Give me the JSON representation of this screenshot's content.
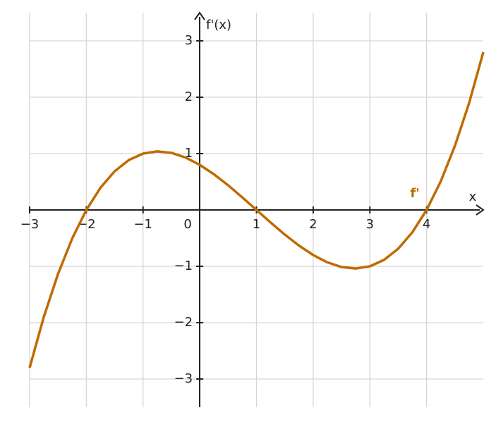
{
  "chart_data": {
    "type": "line",
    "xlabel": "x",
    "ylabel": "f'(x)",
    "x": [
      -3,
      -2.75,
      -2.5,
      -2.25,
      -2,
      -1.75,
      -1.5,
      -1.25,
      -1,
      -0.75,
      -0.5,
      -0.25,
      0,
      0.25,
      0.5,
      0.75,
      1,
      1.25,
      1.5,
      1.75,
      2,
      2.25,
      2.5,
      2.75,
      3,
      3.25,
      3.5,
      3.75,
      4,
      4.25,
      4.5,
      4.75,
      5
    ],
    "series": [
      {
        "name": "f'",
        "color": "#bf6b00",
        "values": [
          -2.8,
          -1.898,
          -1.138,
          -0.508,
          0,
          0.395,
          0.688,
          0.886,
          1.0,
          1.039,
          1.013,
          0.93,
          0.8,
          0.633,
          0.438,
          0.223,
          0,
          -0.223,
          -0.438,
          -0.633,
          -0.8,
          -0.93,
          -1.013,
          -1.039,
          -1.0,
          -0.886,
          -0.688,
          -0.395,
          0,
          0.508,
          1.138,
          1.898,
          2.8
        ]
      }
    ],
    "xlim": [
      -3,
      5
    ],
    "ylim": [
      -3.5,
      3.5
    ],
    "xticks": [
      {
        "value": -3,
        "label": "−3"
      },
      {
        "value": -2,
        "label": "−2"
      },
      {
        "value": -1,
        "label": "−1"
      },
      0,
      1,
      2,
      3,
      4
    ],
    "yticks": [
      {
        "value": -3,
        "label": "−3"
      },
      {
        "value": -2,
        "label": "−2"
      },
      {
        "value": -1,
        "label": "−1"
      },
      1,
      2,
      3
    ],
    "grid": true
  }
}
